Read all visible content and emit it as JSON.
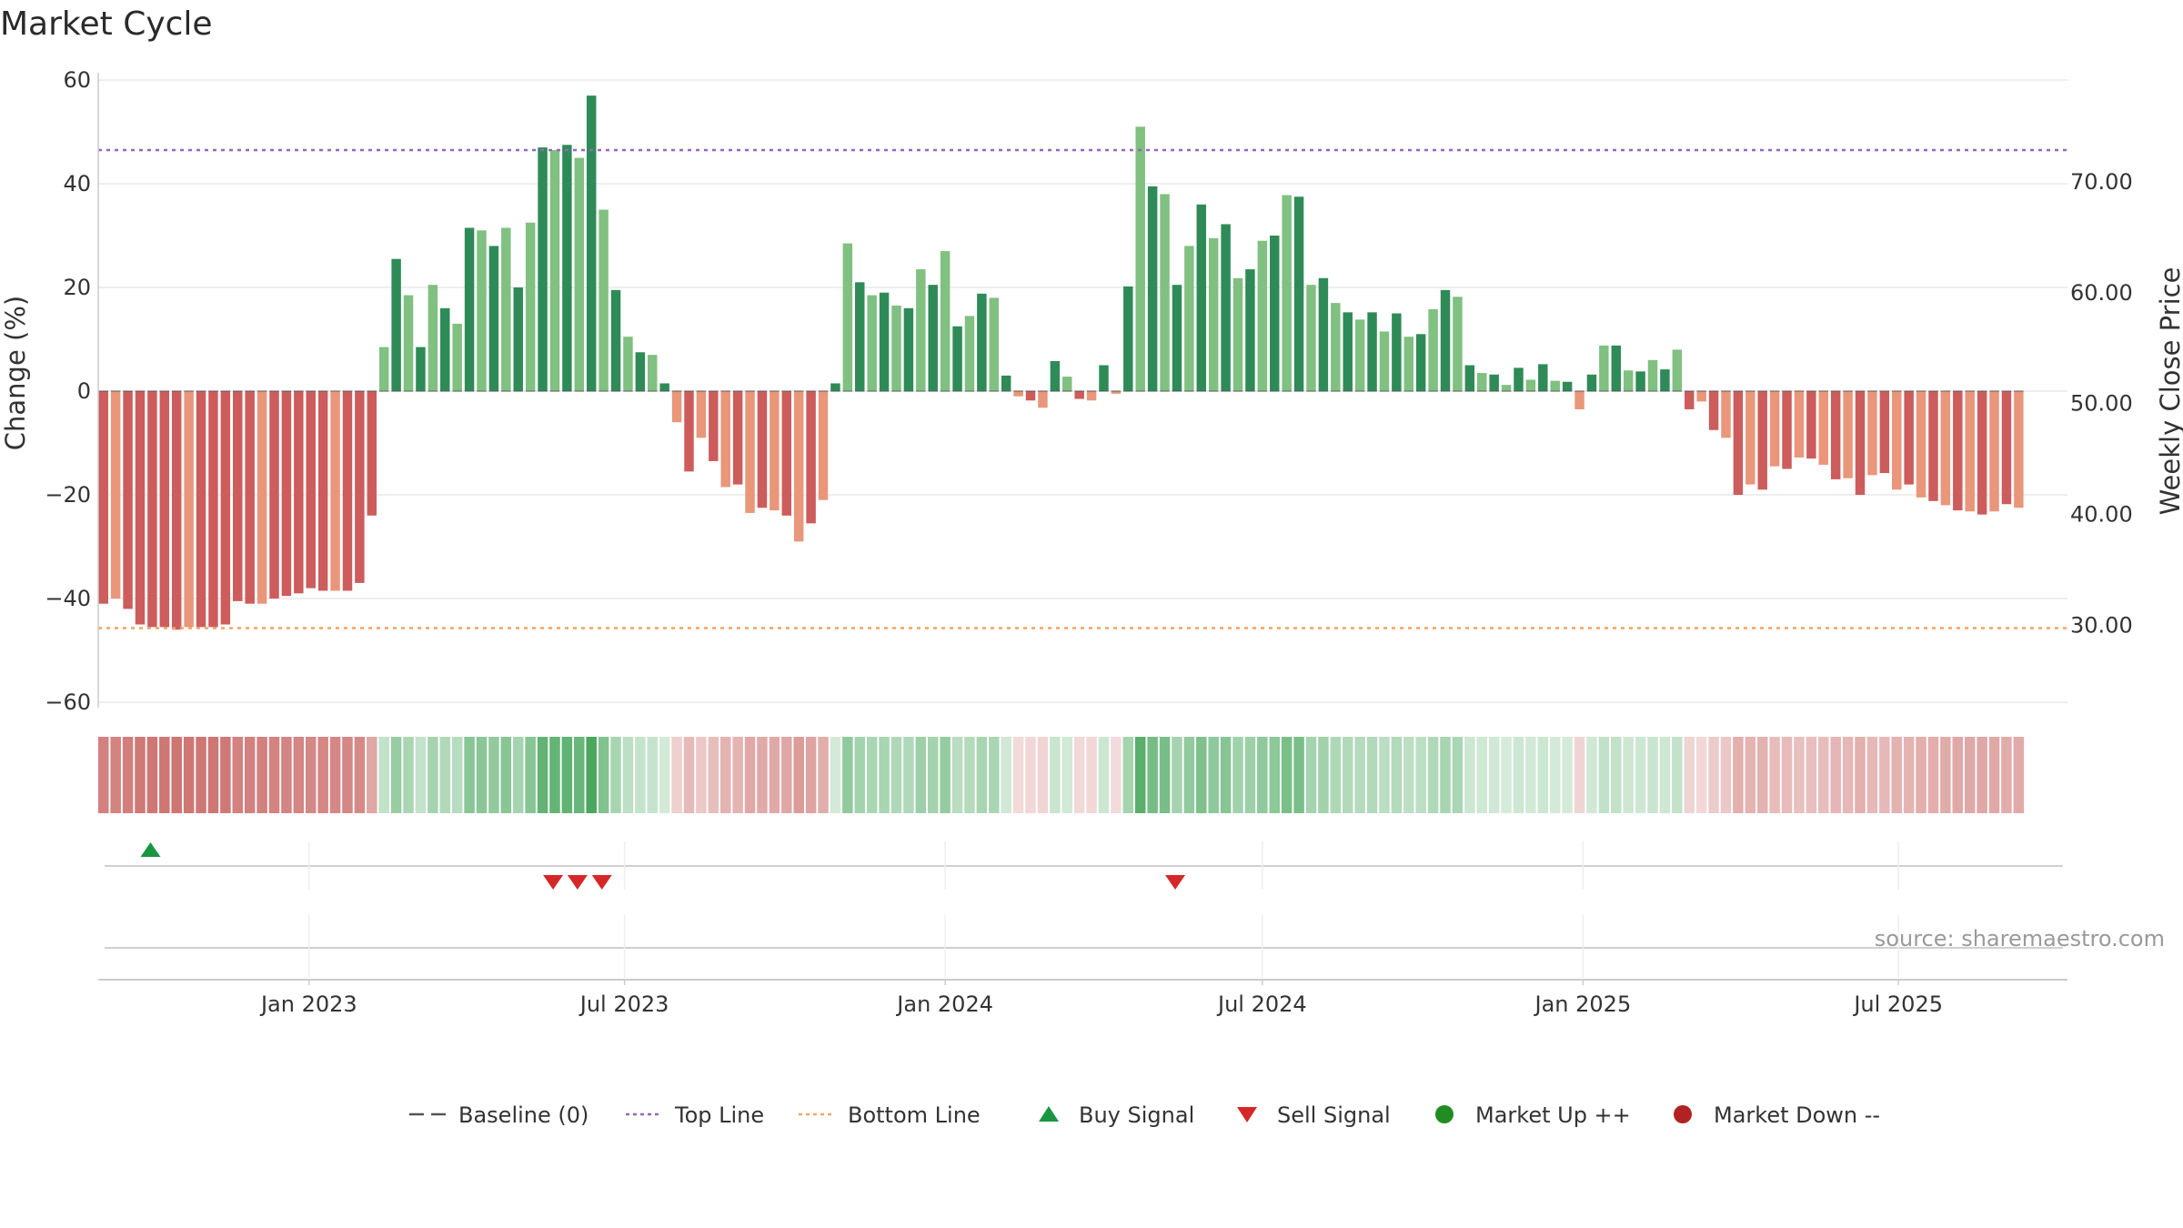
{
  "chart_data": {
    "type": "bar",
    "title": "Market Cycle",
    "ylabel": "Change (%)",
    "y2label": "Weekly Close Price",
    "ylim": [
      -60,
      60
    ],
    "yticks": [
      60,
      40,
      20,
      0,
      -20,
      -40,
      -60
    ],
    "ytick_labels": [
      "60",
      "40",
      "20",
      "0",
      "−20",
      "−40",
      "−60"
    ],
    "y2lim": [
      23.06,
      79.18
    ],
    "y2ticks": [
      70,
      60,
      50,
      40,
      30
    ],
    "y2tick_labels": [
      "70.00",
      "60.00",
      "50.00",
      "40.00",
      "30.00"
    ],
    "top_line": 46.5,
    "bottom_line": -45.7,
    "baseline": 0,
    "x_start": "2022-09-02",
    "x_end": "2025-10-06",
    "xticks": [
      {
        "date": "2023-01-01",
        "label": "Jan 2023"
      },
      {
        "date": "2023-07-01",
        "label": "Jul 2023"
      },
      {
        "date": "2024-01-01",
        "label": "Jan 2024"
      },
      {
        "date": "2024-07-01",
        "label": "Jul 2024"
      },
      {
        "date": "2025-01-01",
        "label": "Jan 2025"
      },
      {
        "date": "2025-07-01",
        "label": "Jul 2025"
      }
    ],
    "first_week": "2022-09-05",
    "values": [
      -41,
      -40,
      -42,
      -45,
      -45.5,
      -45.5,
      -46,
      -45.5,
      -45.5,
      -45.5,
      -45,
      -40.5,
      -41,
      -41,
      -40,
      -39.5,
      -39,
      -38,
      -38.5,
      -38.5,
      -38.5,
      -37,
      -24,
      8.5,
      25.5,
      18.5,
      8.5,
      20.5,
      16,
      13,
      31.5,
      31,
      28,
      31.5,
      20,
      32.5,
      47,
      46.5,
      47.5,
      45,
      57,
      35,
      19.5,
      10.5,
      7.5,
      7,
      1.5,
      -6,
      -15.5,
      -9,
      -13.5,
      -18.5,
      -18,
      -23.5,
      -22.5,
      -23,
      -24,
      -29,
      -25.5,
      -21,
      1.5,
      28.5,
      21,
      18.5,
      19,
      16.5,
      16,
      23.5,
      20.5,
      27,
      12.5,
      14.5,
      18.8,
      18,
      3,
      -1,
      -1.8,
      -3.2,
      5.8,
      2.8,
      -1.5,
      -1.8,
      5,
      -0.5,
      20.2,
      51,
      39.5,
      38,
      20.5,
      28,
      36,
      29.5,
      32.2,
      21.8,
      23.5,
      29,
      30,
      37.8,
      37.5,
      20.5,
      21.8,
      17,
      15.2,
      13.8,
      15.2,
      11.5,
      15,
      10.5,
      11,
      15.8,
      19.5,
      18.2,
      5,
      3.5,
      3.2,
      1.2,
      4.5,
      2.2,
      5.2,
      2,
      1.8,
      -3.5,
      3.2,
      8.8,
      8.8,
      4,
      3.8,
      6,
      4.2,
      8,
      -3.5,
      -2,
      -7.5,
      -9,
      -20,
      -18,
      -19,
      -14.5,
      -15,
      -12.8,
      -13,
      -14.2,
      -17,
      -16.8,
      -20,
      -16.2,
      -15.8,
      -19,
      -18,
      -20.5,
      -21.2,
      -22,
      -23,
      -23.2,
      -23.8,
      -23.2,
      -21.8,
      -22.5
    ],
    "colors": {
      "up_strong": "#2e8b57",
      "up_light": "#80c080",
      "down_strong": "#cd5c5c",
      "down_light": "#e9967a",
      "top_line": "#9467bd",
      "bottom_line": "#f4a460",
      "baseline": "#555555",
      "buy": "#1a9641",
      "sell": "#d62728",
      "market_up": "#228b22",
      "market_down": "#b22222"
    },
    "buy_signals": [
      "2022-10-02"
    ],
    "sell_signals": [
      "2023-05-21",
      "2023-06-04",
      "2023-06-18",
      "2024-05-12"
    ],
    "legend": [
      {
        "type": "dash",
        "label": "Baseline (0)",
        "color": "#555555"
      },
      {
        "type": "dot",
        "label": "Top Line",
        "color": "#9467bd"
      },
      {
        "type": "dot",
        "label": "Bottom Line",
        "color": "#f4a460"
      },
      {
        "type": "tri-up",
        "label": "Buy Signal",
        "color": "#1a9641"
      },
      {
        "type": "tri-down",
        "label": "Sell Signal",
        "color": "#d62728"
      },
      {
        "type": "circle",
        "label": "Market Up ++",
        "color": "#228b22"
      },
      {
        "type": "circle",
        "label": "Market Down --",
        "color": "#b22222"
      }
    ],
    "source": "source: sharemaestro.com"
  }
}
